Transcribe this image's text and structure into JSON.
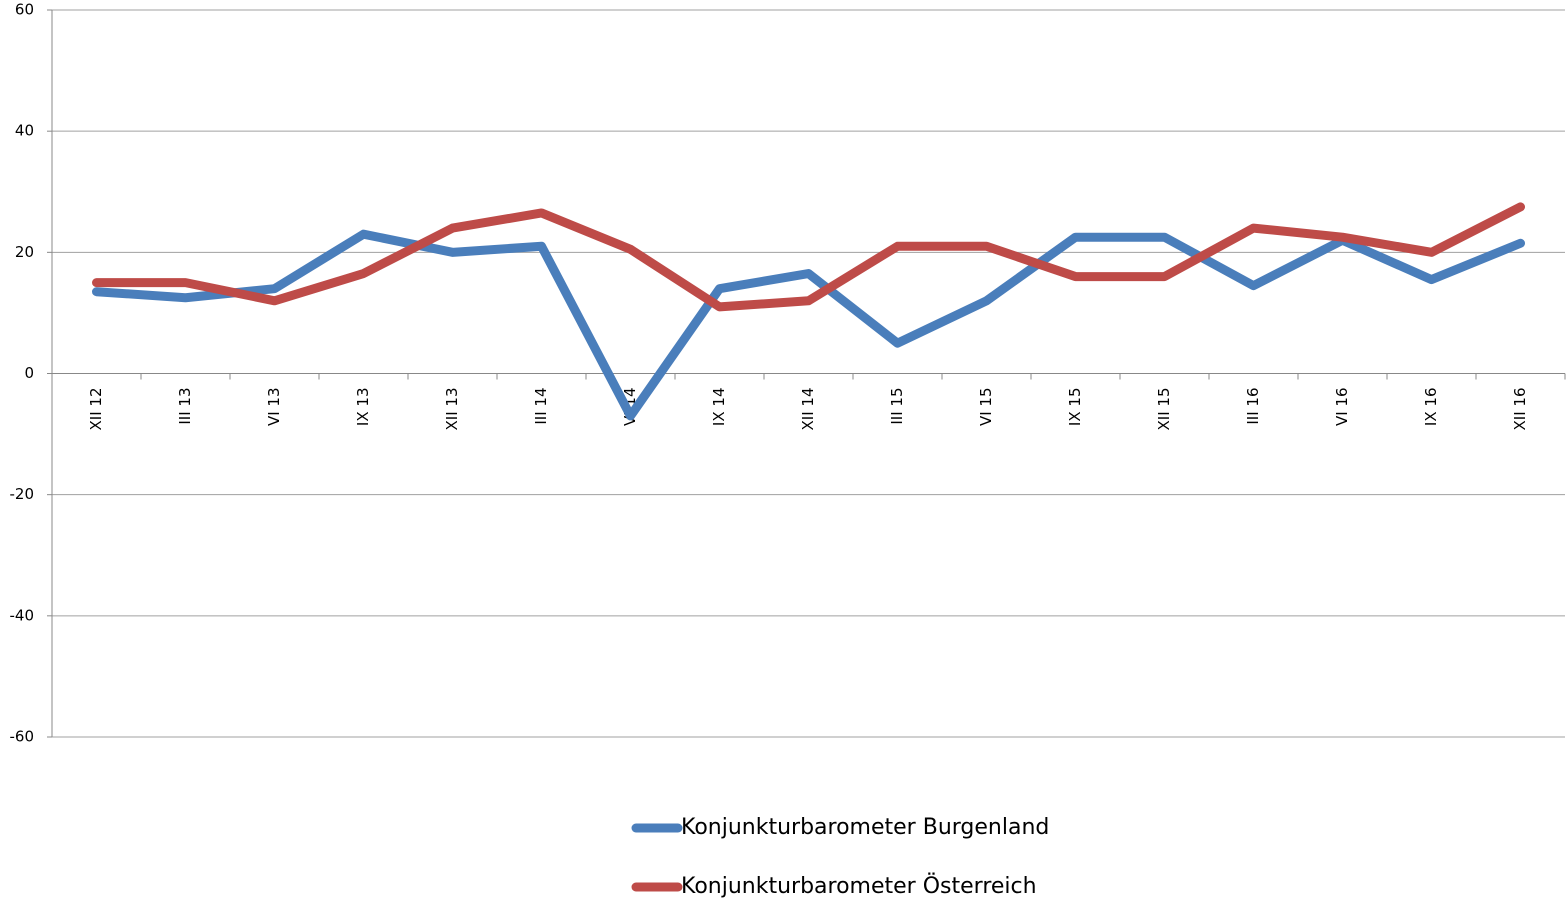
{
  "chart_data": {
    "type": "line",
    "categories": [
      "XII 12",
      "III 13",
      "VI 13",
      "IX 13",
      "XII 13",
      "III 14",
      "VI 14",
      "IX 14",
      "XII 14",
      "III 15",
      "VI 15",
      "IX 15",
      "XII 15",
      "III 16",
      "VI 16",
      "IX 16",
      "XII 16"
    ],
    "series": [
      {
        "name": "Konjunkturbarometer Burgenland",
        "color": "#4a7ebb",
        "values": [
          13.5,
          12.5,
          14,
          23,
          20,
          21,
          -7,
          14,
          16.5,
          5,
          12,
          22.5,
          22.5,
          14.5,
          22,
          15.5,
          21.5
        ]
      },
      {
        "name": "Konjunkturbarometer Österreich",
        "color": "#be4b48",
        "values": [
          15,
          15,
          12,
          16.5,
          24,
          26.5,
          20.5,
          11,
          12,
          21,
          21,
          16,
          16,
          24,
          22.5,
          20,
          27.5
        ]
      }
    ],
    "ylim": [
      -60,
      60
    ],
    "yticks": [
      -60,
      -40,
      -20,
      0,
      20,
      40,
      60
    ],
    "grid": true,
    "legend": "bottom"
  }
}
